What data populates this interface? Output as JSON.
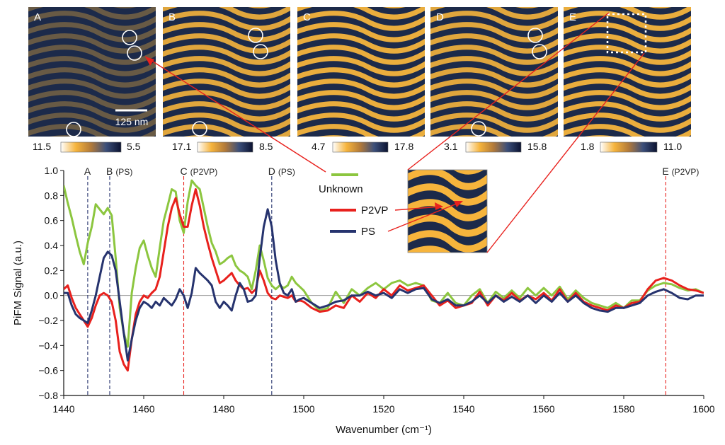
{
  "panels": [
    {
      "letter": "A",
      "cbar_left": "11.5",
      "cbar_right": "5.5",
      "contrast": 0.35,
      "pattern": "weak"
    },
    {
      "letter": "B",
      "cbar_left": "17.1",
      "cbar_right": "8.5",
      "contrast": 0.9,
      "pattern": "stripes"
    },
    {
      "letter": "C",
      "cbar_left": "4.7",
      "cbar_right": "17.8",
      "contrast": 0.95,
      "pattern": "stripes"
    },
    {
      "letter": "D",
      "cbar_left": "3.1",
      "cbar_right": "15.8",
      "contrast": 0.9,
      "pattern": "stripes"
    },
    {
      "letter": "E",
      "cbar_left": "1.8",
      "cbar_right": "11.0",
      "contrast": 0.95,
      "pattern": "stripes"
    }
  ],
  "scale_bar": "125 nm",
  "colors": {
    "unknown": "#8cc63f",
    "p2vp": "#e8211d",
    "ps": "#26336e",
    "map_dark": "#1c2a4a",
    "map_bright": "#f6b43c"
  },
  "legend": {
    "unknown": "Unknown",
    "p2vp": "P2VP",
    "ps": "PS"
  },
  "chart_data": {
    "type": "line",
    "xlabel": "Wavenumber (cm⁻¹)",
    "ylabel": "PiFM Signal (a.u.)",
    "xlim": [
      1440,
      1600
    ],
    "ylim": [
      -0.8,
      1.0
    ],
    "xticks": [
      "1440",
      "1460",
      "1480",
      "1500",
      "1520",
      "1540",
      "1560",
      "1580",
      "1600"
    ],
    "yticks": [
      "−0.8",
      "−0.6",
      "−0.4",
      "−0.2",
      "0.0",
      "0.2",
      "0.4",
      "0.6",
      "0.8",
      "1.0"
    ],
    "markers": [
      {
        "x": 1446,
        "label": "A",
        "tag": "",
        "color": "#26336e"
      },
      {
        "x": 1451.5,
        "label": "B",
        "tag": "(PS)",
        "color": "#26336e"
      },
      {
        "x": 1470,
        "label": "C",
        "tag": "(P2VP)",
        "color": "#e8211d"
      },
      {
        "x": 1492,
        "label": "D",
        "tag": "(PS)",
        "color": "#26336e"
      },
      {
        "x": 1590.5,
        "label": "E",
        "tag": "(P2VP)",
        "color": "#e8211d"
      }
    ],
    "series": [
      {
        "name": "Unknown",
        "key": "unknown",
        "x": [
          1440,
          1441,
          1442,
          1443,
          1444,
          1445,
          1446,
          1447,
          1448,
          1449,
          1450,
          1451,
          1452,
          1453,
          1454,
          1455,
          1456,
          1457,
          1458,
          1459,
          1460,
          1461,
          1462,
          1463,
          1464,
          1465,
          1466,
          1467,
          1468,
          1469,
          1470,
          1471,
          1472,
          1473,
          1474,
          1475,
          1476,
          1477,
          1478,
          1479,
          1480,
          1481,
          1482,
          1483,
          1484,
          1485,
          1486,
          1487,
          1488,
          1489,
          1490,
          1491,
          1492,
          1493,
          1494,
          1495,
          1496,
          1497,
          1498,
          1499,
          1500,
          1502,
          1504,
          1506,
          1508,
          1510,
          1512,
          1514,
          1516,
          1518,
          1520,
          1522,
          1524,
          1526,
          1528,
          1530,
          1532,
          1534,
          1536,
          1538,
          1540,
          1542,
          1544,
          1546,
          1548,
          1550,
          1552,
          1554,
          1556,
          1558,
          1560,
          1562,
          1564,
          1566,
          1568,
          1570,
          1572,
          1574,
          1576,
          1578,
          1580,
          1582,
          1584,
          1586,
          1588,
          1590,
          1592,
          1594,
          1596,
          1598,
          1600
        ],
        "y": [
          0.88,
          0.74,
          0.62,
          0.48,
          0.35,
          0.25,
          0.42,
          0.55,
          0.73,
          0.69,
          0.65,
          0.7,
          0.64,
          0.3,
          -0.1,
          -0.3,
          -0.41,
          0.02,
          0.22,
          0.38,
          0.44,
          0.32,
          0.22,
          0.15,
          0.38,
          0.6,
          0.72,
          0.85,
          0.83,
          0.6,
          0.5,
          0.75,
          0.92,
          0.88,
          0.85,
          0.7,
          0.55,
          0.42,
          0.35,
          0.25,
          0.27,
          0.3,
          0.32,
          0.24,
          0.2,
          0.18,
          0.15,
          0.05,
          0.2,
          0.4,
          0.28,
          0.14,
          0.08,
          0.05,
          0.08,
          0.06,
          0.08,
          0.15,
          0.1,
          0.07,
          0.04,
          -0.06,
          -0.12,
          -0.1,
          0.03,
          -0.06,
          0.05,
          0.0,
          0.06,
          0.1,
          0.05,
          0.1,
          0.12,
          0.08,
          0.1,
          0.08,
          -0.04,
          -0.06,
          0.02,
          -0.06,
          -0.08,
          0.0,
          0.05,
          -0.06,
          0.03,
          -0.02,
          0.04,
          -0.02,
          0.06,
          0.0,
          0.06,
          0.0,
          0.07,
          -0.03,
          0.04,
          -0.02,
          -0.06,
          -0.08,
          -0.1,
          -0.06,
          -0.1,
          -0.04,
          -0.04,
          0.04,
          0.08,
          0.1,
          0.09,
          0.06,
          0.04,
          0.05,
          0.02
        ]
      },
      {
        "name": "P2VP",
        "key": "p2vp",
        "x": [
          1440,
          1441,
          1442,
          1443,
          1444,
          1445,
          1446,
          1447,
          1448,
          1449,
          1450,
          1451,
          1452,
          1453,
          1454,
          1455,
          1456,
          1457,
          1458,
          1459,
          1460,
          1461,
          1462,
          1463,
          1464,
          1465,
          1466,
          1467,
          1468,
          1469,
          1470,
          1471,
          1472,
          1473,
          1474,
          1475,
          1476,
          1477,
          1478,
          1479,
          1480,
          1481,
          1482,
          1483,
          1484,
          1485,
          1486,
          1487,
          1488,
          1489,
          1490,
          1491,
          1492,
          1493,
          1494,
          1495,
          1496,
          1497,
          1498,
          1499,
          1500,
          1502,
          1504,
          1506,
          1508,
          1510,
          1512,
          1514,
          1516,
          1518,
          1520,
          1522,
          1524,
          1526,
          1528,
          1530,
          1532,
          1534,
          1536,
          1538,
          1540,
          1542,
          1544,
          1546,
          1548,
          1550,
          1552,
          1554,
          1556,
          1558,
          1560,
          1562,
          1564,
          1566,
          1568,
          1570,
          1572,
          1574,
          1576,
          1578,
          1580,
          1582,
          1584,
          1586,
          1588,
          1590,
          1592,
          1594,
          1596,
          1598,
          1600
        ],
        "y": [
          0.05,
          0.08,
          -0.02,
          -0.1,
          -0.15,
          -0.2,
          -0.25,
          -0.18,
          -0.08,
          0.0,
          0.02,
          0.0,
          -0.05,
          -0.2,
          -0.45,
          -0.55,
          -0.6,
          -0.35,
          -0.15,
          -0.05,
          0.0,
          -0.02,
          0.02,
          0.05,
          0.15,
          0.35,
          0.55,
          0.7,
          0.78,
          0.65,
          0.55,
          0.55,
          0.72,
          0.85,
          0.72,
          0.55,
          0.42,
          0.3,
          0.2,
          0.1,
          0.12,
          0.15,
          0.18,
          0.12,
          0.08,
          0.05,
          0.06,
          0.02,
          0.05,
          0.2,
          0.12,
          0.02,
          -0.02,
          -0.03,
          0.0,
          -0.01,
          -0.02,
          0.0,
          -0.05,
          -0.04,
          -0.05,
          -0.1,
          -0.13,
          -0.12,
          -0.08,
          -0.1,
          0.0,
          -0.05,
          0.02,
          -0.02,
          0.05,
          0.0,
          0.08,
          0.04,
          0.06,
          0.08,
          0.0,
          -0.08,
          -0.04,
          -0.1,
          -0.08,
          -0.06,
          0.03,
          -0.08,
          0.0,
          -0.04,
          0.02,
          -0.04,
          0.0,
          -0.03,
          0.02,
          -0.04,
          0.05,
          -0.05,
          0.02,
          -0.05,
          -0.08,
          -0.1,
          -0.12,
          -0.08,
          -0.1,
          -0.06,
          -0.05,
          0.05,
          0.12,
          0.14,
          0.12,
          0.08,
          0.05,
          0.04,
          0.02
        ]
      },
      {
        "name": "PS",
        "key": "ps",
        "x": [
          1440,
          1441,
          1442,
          1443,
          1444,
          1445,
          1446,
          1447,
          1448,
          1449,
          1450,
          1451,
          1452,
          1453,
          1454,
          1455,
          1456,
          1457,
          1458,
          1459,
          1460,
          1461,
          1462,
          1463,
          1464,
          1465,
          1466,
          1467,
          1468,
          1469,
          1470,
          1471,
          1472,
          1473,
          1474,
          1475,
          1476,
          1477,
          1478,
          1479,
          1480,
          1481,
          1482,
          1483,
          1484,
          1485,
          1486,
          1487,
          1488,
          1489,
          1490,
          1491,
          1492,
          1493,
          1494,
          1495,
          1496,
          1497,
          1498,
          1499,
          1500,
          1502,
          1504,
          1506,
          1508,
          1510,
          1512,
          1514,
          1516,
          1518,
          1520,
          1522,
          1524,
          1526,
          1528,
          1530,
          1532,
          1534,
          1536,
          1538,
          1540,
          1542,
          1544,
          1546,
          1548,
          1550,
          1552,
          1554,
          1556,
          1558,
          1560,
          1562,
          1564,
          1566,
          1568,
          1570,
          1572,
          1574,
          1576,
          1578,
          1580,
          1582,
          1584,
          1586,
          1588,
          1590,
          1592,
          1594,
          1596,
          1598,
          1600
        ],
        "y": [
          0.02,
          0.02,
          -0.08,
          -0.15,
          -0.18,
          -0.2,
          -0.22,
          -0.12,
          0.0,
          0.15,
          0.3,
          0.35,
          0.32,
          0.2,
          -0.05,
          -0.3,
          -0.52,
          -0.35,
          -0.2,
          -0.1,
          -0.05,
          -0.07,
          -0.1,
          -0.05,
          -0.08,
          -0.02,
          -0.05,
          -0.08,
          -0.03,
          0.05,
          0.0,
          -0.1,
          0.02,
          0.22,
          0.18,
          0.15,
          0.12,
          0.08,
          -0.05,
          -0.1,
          -0.05,
          -0.08,
          -0.12,
          0.0,
          0.1,
          0.05,
          -0.05,
          -0.04,
          0.0,
          0.3,
          0.55,
          0.69,
          0.55,
          0.28,
          0.1,
          0.02,
          0.0,
          0.05,
          -0.05,
          -0.03,
          -0.02,
          -0.06,
          -0.1,
          -0.08,
          -0.05,
          -0.04,
          0.0,
          0.0,
          0.03,
          0.0,
          0.02,
          -0.02,
          0.05,
          0.02,
          0.05,
          0.06,
          -0.03,
          -0.06,
          -0.03,
          -0.08,
          -0.08,
          -0.05,
          0.0,
          -0.06,
          0.0,
          -0.05,
          -0.01,
          -0.05,
          0.0,
          -0.06,
          0.0,
          -0.05,
          0.02,
          -0.05,
          0.0,
          -0.06,
          -0.1,
          -0.12,
          -0.13,
          -0.1,
          -0.1,
          -0.08,
          -0.06,
          0.0,
          0.03,
          0.05,
          0.02,
          -0.02,
          -0.03,
          0.0,
          0.0
        ]
      }
    ]
  }
}
